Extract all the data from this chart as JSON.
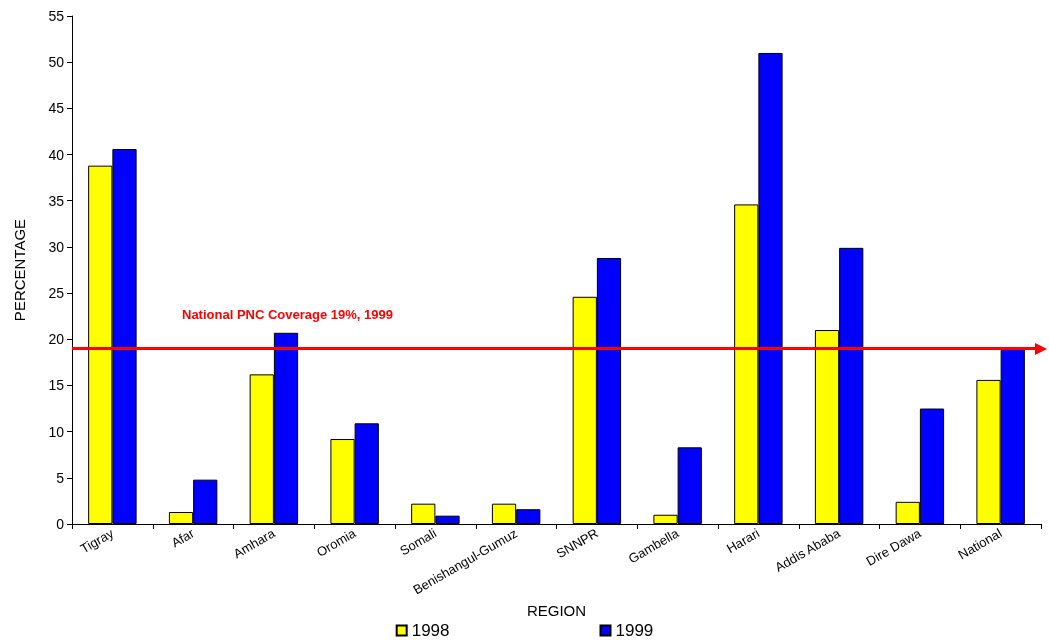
{
  "chart_data": {
    "type": "bar",
    "xlabel": "REGION",
    "ylabel": "PERCENTAGE",
    "categories": [
      "Tigray",
      "Afar",
      "Amhara",
      "Oromia",
      "Somali",
      "Benishangul-Gumuz",
      "SNNPR",
      "Gambella",
      "Harari",
      "Addis Ababa",
      "Dire Dawa",
      "National"
    ],
    "series": [
      {
        "name": "1998",
        "color": "#ffff00",
        "values": [
          38.8,
          1.3,
          16.2,
          9.2,
          2.2,
          2.2,
          24.6,
          1.0,
          34.6,
          21.0,
          2.4,
          15.6
        ]
      },
      {
        "name": "1999",
        "color": "#0000ff",
        "values": [
          40.6,
          4.8,
          20.7,
          10.9,
          0.9,
          1.6,
          28.8,
          8.3,
          51.0,
          29.9,
          12.5,
          19
        ]
      }
    ],
    "ylim": [
      0,
      55
    ],
    "yticks": [
      0,
      5,
      10,
      15,
      20,
      25,
      30,
      35,
      40,
      45,
      50,
      55
    ],
    "ref_lines": [
      {
        "axis": "y",
        "value": 19,
        "label": "National PNC Coverage 19%, 1999",
        "color": "#ff0000",
        "line_style": "solid"
      }
    ],
    "grid": false,
    "legend": "bottom"
  }
}
